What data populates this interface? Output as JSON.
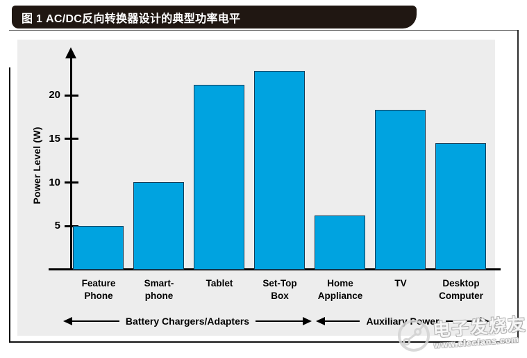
{
  "figure": {
    "title": "图 1 AC/DC反向转换器设计的典型功率电平"
  },
  "chart_data": {
    "type": "bar",
    "title": "图 1 AC/DC反向转换器设计的典型功率电平",
    "xlabel": "",
    "ylabel": "Power Level (W)",
    "ylim": [
      0,
      24
    ],
    "yticks": [
      5,
      10,
      15,
      20
    ],
    "grid": false,
    "legend": "none",
    "bar_color": "#00a3e0",
    "bar_border_color": "#123d58",
    "categories": [
      "Feature\nPhone",
      "Smart-\nphone",
      "Tablet",
      "Set-Top\nBox",
      "Home\nAppliance",
      "TV",
      "Desktop\nComputer"
    ],
    "values": [
      5,
      10,
      21.2,
      22.8,
      6.2,
      18.3,
      14.5
    ],
    "groups": [
      {
        "label": "Battery Chargers/Adapters",
        "spans_categories": [
          "Feature Phone",
          "Smart-phone",
          "Tablet",
          "Set-Top Box"
        ]
      },
      {
        "label": "Auxiliary Power",
        "spans_categories": [
          "Home Appliance",
          "TV",
          "Desktop Computer"
        ]
      }
    ]
  },
  "watermark": {
    "brand": "电子发烧友",
    "site": "www.elecfans.com"
  },
  "colors": {
    "title_bar_bg": "#201712",
    "title_text": "#ffffff",
    "panel_bg": "#ededed",
    "axis": "#000000"
  }
}
